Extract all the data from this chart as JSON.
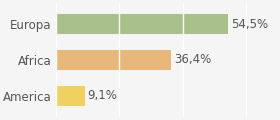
{
  "categories": [
    "America",
    "Africa",
    "Europa"
  ],
  "values": [
    9.1,
    36.4,
    54.5
  ],
  "labels": [
    "9,1%",
    "36,4%",
    "54,5%"
  ],
  "bar_colors": [
    "#f0d060",
    "#e8b87a",
    "#a8c08a"
  ],
  "background_color": "#f5f5f5",
  "xlim": [
    0,
    70
  ],
  "bar_height": 0.55,
  "label_fontsize": 8.5,
  "tick_fontsize": 8.5
}
